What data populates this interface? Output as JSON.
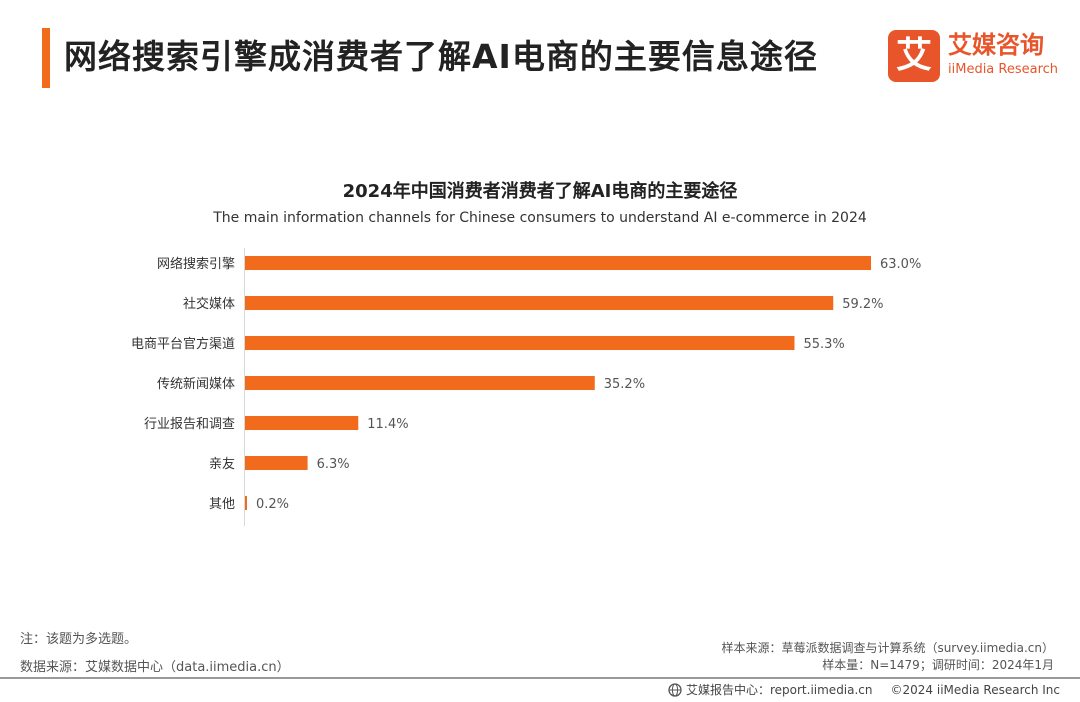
{
  "header": {
    "title": "网络搜索引擎成消费者了解AI电商的主要信息途径",
    "accent_color": "#f26a1b"
  },
  "logo": {
    "mark": "艾",
    "name": "艾媒咨询",
    "subtitle": "iiMedia Research",
    "color": "#e8552b"
  },
  "chart_data": {
    "type": "bar",
    "orientation": "horizontal",
    "title": "2024年中国消费者消费者了解AI电商的主要途径",
    "subtitle": "The main information channels for Chinese consumers to understand AI e-commerce in 2024",
    "categories": [
      "网络搜索引擎",
      "社交媒体",
      "电商平台官方渠道",
      "传统新闻媒体",
      "行业报告和调查",
      "亲友",
      "其他"
    ],
    "values": [
      63.0,
      59.2,
      55.3,
      35.2,
      11.4,
      6.3,
      0.2
    ],
    "value_labels": [
      "63.0%",
      "59.2%",
      "55.3%",
      "35.2%",
      "11.4%",
      "6.3%",
      "0.2%"
    ],
    "xlim": [
      0,
      63.0
    ],
    "bar_color": "#f26a1b",
    "grid": false,
    "legend": "none"
  },
  "notes": {
    "note": "注：该题为多选题。",
    "data_source": "数据来源：艾媒数据中心（data.iimedia.cn）",
    "sample_source": "样本来源：草莓派数据调查与计算系统（survey.iimedia.cn）",
    "sample_size": "样本量：N=1479；调研时间：2024年1月"
  },
  "footer": {
    "report_center": "艾媒报告中心：report.iimedia.cn",
    "copyright": "©2024  iiMedia Research  Inc",
    "icon": "globe-icon"
  }
}
